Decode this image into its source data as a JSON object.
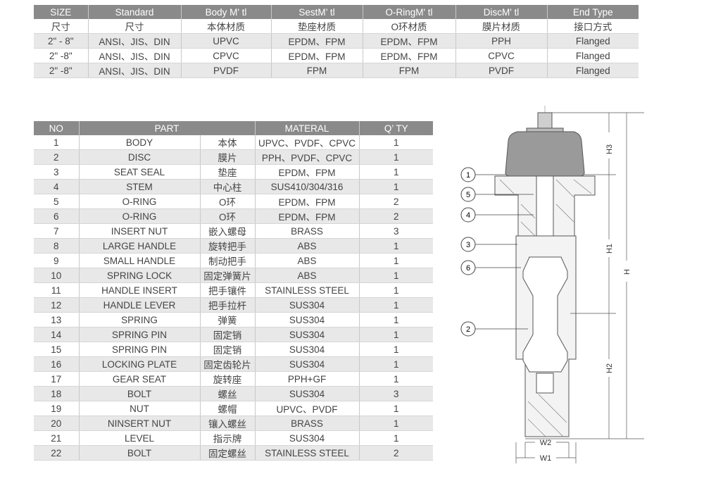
{
  "spec_table": {
    "headers": [
      "SIZE",
      "Standard",
      "Body M' tl",
      "SestM’ tl",
      "O-RingM' tl",
      "DiscM' tl",
      "End Type"
    ],
    "subheaders": [
      "尺寸",
      "尺寸",
      "本体材质",
      "垫座材质",
      "O环材质",
      "膜片材质",
      "接口方式"
    ],
    "rows": [
      [
        "2\" - 8\"",
        "ANSI、JIS、DIN",
        "UPVC",
        "EPDM、FPM",
        "EPDM、FPM",
        "PPH",
        "Flanged"
      ],
      [
        "2\" -8\"",
        "ANSI、JIS、DIN",
        "CPVC",
        "EPDM、FPM",
        "EPDM、FPM",
        "CPVC",
        "Flanged"
      ],
      [
        "2\" -8\"",
        "ANSI、JIS、DIN",
        "PVDF",
        "FPM",
        "FPM",
        "PVDF",
        "Flanged"
      ]
    ]
  },
  "parts_table": {
    "headers": [
      "NO",
      "PART",
      "MATERAL",
      "Q’ TY"
    ],
    "rows": [
      [
        "1",
        "BODY",
        "本体",
        "UPVC、PVDF、CPVC",
        "1"
      ],
      [
        "2",
        "DISC",
        "膜片",
        "PPH、PVDF、CPVC",
        "1"
      ],
      [
        "3",
        "SEAT SEAL",
        "垫座",
        "EPDM、FPM",
        "1"
      ],
      [
        "4",
        "STEM",
        "中心柱",
        "SUS410/304/316",
        "1"
      ],
      [
        "5",
        "O-RING",
        "O环",
        "EPDM、FPM",
        "2"
      ],
      [
        "6",
        "O-RING",
        "O环",
        "EPDM、FPM",
        "2"
      ],
      [
        "7",
        "INSERT NUT",
        "嵌入螺母",
        "BRASS",
        "3"
      ],
      [
        "8",
        "LARGE HANDLE",
        "旋转把手",
        "ABS",
        "1"
      ],
      [
        "9",
        "SMALL HANDLE",
        "制动把手",
        "ABS",
        "1"
      ],
      [
        "10",
        "SPRING LOCK",
        "固定弹簧片",
        "ABS",
        "1"
      ],
      [
        "11",
        "HANDLE INSERT",
        "把手镶件",
        "STAINLESS STEEL",
        "1"
      ],
      [
        "12",
        "HANDLE LEVER",
        "把手拉杆",
        "SUS304",
        "1"
      ],
      [
        "13",
        "SPRING",
        "弹簧",
        "SUS304",
        "1"
      ],
      [
        "14",
        "SPRING PIN",
        "固定销",
        "SUS304",
        "1"
      ],
      [
        "15",
        "SPRING PIN",
        "固定销",
        "SUS304",
        "1"
      ],
      [
        "16",
        "LOCKING PLATE",
        "固定齿轮片",
        "SUS304",
        "1"
      ],
      [
        "17",
        "GEAR SEAT",
        "旋转座",
        "PPH+GF",
        "1"
      ],
      [
        "18",
        "BOLT",
        "螺丝",
        "SUS304",
        "3"
      ],
      [
        "19",
        "NUT",
        "螺帽",
        "UPVC、PVDF",
        "1"
      ],
      [
        "20",
        "NINSERT NUT",
        "镶入螺丝",
        "BRASS",
        "1"
      ],
      [
        "21",
        "LEVEL",
        "指示牌",
        "SUS304",
        "1"
      ],
      [
        "22",
        "BOLT",
        "固定螺丝",
        "STAINLESS STEEL",
        "2"
      ]
    ]
  },
  "drawing": {
    "callouts": [
      "1",
      "5",
      "4",
      "3",
      "6",
      "2"
    ],
    "dimensions": {
      "h3": "H3",
      "h1": "H1",
      "h": "H",
      "h2": "H2",
      "w2": "W2",
      "w1": "W1"
    }
  }
}
